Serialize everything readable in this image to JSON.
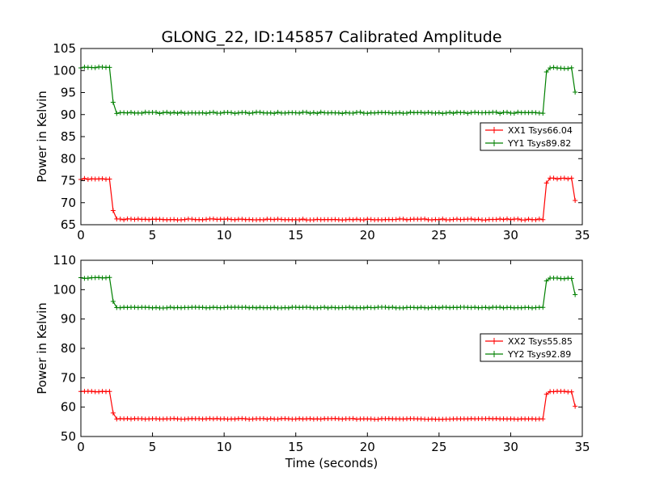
{
  "title": "GLONG_22, ID:145857 Calibrated Amplitude",
  "chart_data": [
    {
      "type": "line",
      "xlabel": "",
      "ylabel": "Power in Kelvin",
      "xlim": [
        0,
        35
      ],
      "ylim": [
        65,
        105
      ],
      "xticks": [
        0,
        5,
        10,
        15,
        20,
        25,
        30,
        35
      ],
      "yticks": [
        65,
        70,
        75,
        80,
        85,
        90,
        95,
        100,
        105
      ],
      "legend_position": "center-right",
      "series": [
        {
          "name": "XX1 Tsys66.04",
          "color": "#ff0000",
          "base": 66.2,
          "high": 75.4,
          "ramp_start": 68.2,
          "end_value": 70.5,
          "high_end": 75.5,
          "noise": 0.12
        },
        {
          "name": "YY1 Tsys89.82",
          "color": "#008000",
          "base": 90.4,
          "high": 100.7,
          "ramp_start": 92.8,
          "end_value": 95.1,
          "high_end": 100.6,
          "noise": 0.15
        }
      ]
    },
    {
      "type": "line",
      "xlabel": "Time (seconds)",
      "ylabel": "Power in Kelvin",
      "xlim": [
        0,
        35
      ],
      "ylim": [
        50,
        110
      ],
      "xticks": [
        0,
        5,
        10,
        15,
        20,
        25,
        30,
        35
      ],
      "yticks": [
        50,
        60,
        70,
        80,
        90,
        100,
        110
      ],
      "legend_position": "center-right",
      "series": [
        {
          "name": "XX2 Tsys55.85",
          "color": "#ff0000",
          "base": 56.0,
          "high": 65.3,
          "ramp_start": 58.0,
          "end_value": 60.3,
          "high_end": 65.3,
          "noise": 0.12
        },
        {
          "name": "YY2 Tsys92.89",
          "color": "#008000",
          "base": 93.9,
          "high": 104.0,
          "ramp_start": 96.0,
          "end_value": 98.3,
          "high_end": 103.9,
          "noise": 0.15
        }
      ]
    }
  ]
}
